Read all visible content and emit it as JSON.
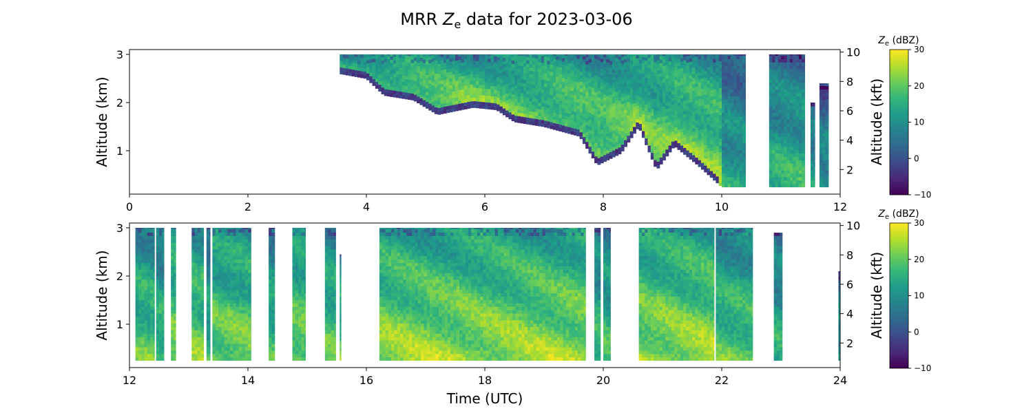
{
  "figure": {
    "title_prefix": "MRR ",
    "title_var": "Z",
    "title_sub": "e",
    "title_suffix": " data for 2023-03-06"
  },
  "colormap": {
    "name": "viridis",
    "stops": [
      "#440154",
      "#482878",
      "#3e4989",
      "#31688e",
      "#26828e",
      "#1f9e89",
      "#35b779",
      "#6ece58",
      "#b5de2b",
      "#fde725"
    ]
  },
  "chart_data": [
    {
      "type": "heatmap",
      "panel": "top",
      "xlabel": "",
      "ylabel_left": "Altitude (km)",
      "ylabel_right": "Altitude (kft)",
      "xlim": [
        0,
        12
      ],
      "ylim": [
        0.1,
        3.1
      ],
      "xticks": [
        "0",
        "2",
        "4",
        "6",
        "8",
        "10",
        "12"
      ],
      "yticks_left": [
        "1",
        "2",
        "3"
      ],
      "yticks_right": [
        "2",
        "4",
        "6",
        "8",
        "10"
      ],
      "colorbar": {
        "label_var": "Z",
        "label_sub": "e",
        "label_unit": " (dBZ)",
        "range": [
          -10,
          30
        ],
        "ticks": [
          "−10",
          "0",
          "10",
          "20",
          "30"
        ]
      },
      "echo_segments": [
        {
          "x": [
            3.55,
            10.0
          ],
          "top": 3.0,
          "base_profile": [
            [
              3.55,
              2.6
            ],
            [
              4.0,
              2.5
            ],
            [
              4.3,
              2.15
            ],
            [
              4.8,
              2.05
            ],
            [
              5.2,
              1.75
            ],
            [
              5.8,
              1.9
            ],
            [
              6.2,
              1.85
            ],
            [
              6.5,
              1.6
            ],
            [
              7.0,
              1.5
            ],
            [
              7.6,
              1.3
            ],
            [
              7.9,
              0.7
            ],
            [
              8.3,
              0.95
            ],
            [
              8.6,
              1.5
            ],
            [
              8.9,
              0.6
            ],
            [
              9.2,
              1.1
            ],
            [
              9.6,
              0.7
            ],
            [
              10.0,
              0.25
            ]
          ],
          "peak_dbz": 22
        },
        {
          "x": [
            10.0,
            10.4
          ],
          "top": 3.0,
          "base_profile": [
            [
              10.0,
              0.25
            ],
            [
              10.4,
              0.25
            ]
          ],
          "peak_dbz": 14
        },
        {
          "x": [
            10.8,
            11.4
          ],
          "top": 3.0,
          "base_profile": [
            [
              10.8,
              0.25
            ],
            [
              11.4,
              0.25
            ]
          ],
          "peak_dbz": 16
        },
        {
          "x": [
            11.5,
            11.57
          ],
          "top": 2.0,
          "base_profile": [
            [
              11.5,
              0.25
            ],
            [
              11.57,
              0.25
            ]
          ],
          "peak_dbz": 14
        },
        {
          "x": [
            11.65,
            11.8
          ],
          "top": 2.4,
          "base_profile": [
            [
              11.65,
              0.25
            ],
            [
              11.8,
              0.25
            ]
          ],
          "peak_dbz": 12
        }
      ]
    },
    {
      "type": "heatmap",
      "panel": "bottom",
      "xlabel": "Time (UTC)",
      "ylabel_left": "Altitude (km)",
      "ylabel_right": "Altitude (kft)",
      "xlim": [
        12,
        24
      ],
      "ylim": [
        0.1,
        3.1
      ],
      "xticks": [
        "12",
        "14",
        "16",
        "18",
        "20",
        "22",
        "24"
      ],
      "yticks_left": [
        "1",
        "2",
        "3"
      ],
      "yticks_right": [
        "2",
        "4",
        "6",
        "8",
        "10"
      ],
      "colorbar": {
        "label_var": "Z",
        "label_sub": "e",
        "label_unit": " (dBZ)",
        "range": [
          -10,
          30
        ],
        "ticks": [
          "−10",
          "0",
          "10",
          "20",
          "30"
        ]
      },
      "echo_segments": [
        {
          "x": [
            12.1,
            12.42
          ],
          "top": 3.0,
          "base_profile": [
            [
              12.1,
              0.25
            ],
            [
              12.42,
              0.25
            ]
          ],
          "peak_dbz": 20
        },
        {
          "x": [
            12.45,
            12.58
          ],
          "top": 3.0,
          "base_profile": [
            [
              12.45,
              0.25
            ],
            [
              12.58,
              0.25
            ]
          ],
          "peak_dbz": 18
        },
        {
          "x": [
            12.7,
            12.78
          ],
          "top": 3.0,
          "base_profile": [
            [
              12.7,
              0.25
            ],
            [
              12.78,
              0.25
            ]
          ],
          "peak_dbz": 22
        },
        {
          "x": [
            13.05,
            13.25
          ],
          "top": 3.0,
          "base_profile": [
            [
              13.05,
              0.25
            ],
            [
              13.25,
              0.25
            ]
          ],
          "peak_dbz": 22
        },
        {
          "x": [
            13.3,
            13.36
          ],
          "top": 3.0,
          "base_profile": [
            [
              13.3,
              0.25
            ],
            [
              13.36,
              0.25
            ]
          ],
          "peak_dbz": 16
        },
        {
          "x": [
            13.4,
            14.05
          ],
          "top": 3.0,
          "base_profile": [
            [
              13.4,
              0.25
            ],
            [
              14.05,
              0.25
            ]
          ],
          "peak_dbz": 22
        },
        {
          "x": [
            14.35,
            14.45
          ],
          "top": 3.0,
          "base_profile": [
            [
              14.35,
              0.25
            ],
            [
              14.45,
              0.25
            ]
          ],
          "peak_dbz": 18
        },
        {
          "x": [
            14.75,
            14.97
          ],
          "top": 3.0,
          "base_profile": [
            [
              14.75,
              0.25
            ],
            [
              14.97,
              0.25
            ]
          ],
          "peak_dbz": 22
        },
        {
          "x": [
            15.3,
            15.48
          ],
          "top": 3.0,
          "base_profile": [
            [
              15.3,
              0.25
            ],
            [
              15.48,
              0.25
            ]
          ],
          "peak_dbz": 20
        },
        {
          "x": [
            15.55,
            15.57
          ],
          "top": 2.45,
          "base_profile": [
            [
              15.55,
              0.25
            ],
            [
              15.57,
              0.25
            ]
          ],
          "peak_dbz": 20
        },
        {
          "x": [
            16.22,
            19.7
          ],
          "top": 3.0,
          "base_profile": [
            [
              16.22,
              0.25
            ],
            [
              19.7,
              0.25
            ]
          ],
          "peak_dbz": 24
        },
        {
          "x": [
            19.85,
            19.95
          ],
          "top": 3.0,
          "base_profile": [
            [
              19.85,
              0.25
            ],
            [
              19.95,
              0.25
            ]
          ],
          "peak_dbz": 18
        },
        {
          "x": [
            20.0,
            20.12
          ],
          "top": 3.0,
          "base_profile": [
            [
              20.0,
              0.25
            ],
            [
              20.12,
              0.25
            ]
          ],
          "peak_dbz": 18
        },
        {
          "x": [
            20.6,
            21.87
          ],
          "top": 3.0,
          "base_profile": [
            [
              20.6,
              0.25
            ],
            [
              21.87,
              0.25
            ]
          ],
          "peak_dbz": 24
        },
        {
          "x": [
            21.9,
            22.52
          ],
          "top": 3.0,
          "base_profile": [
            [
              21.9,
              0.25
            ],
            [
              22.52,
              0.25
            ]
          ],
          "peak_dbz": 20
        },
        {
          "x": [
            22.88,
            23.02
          ],
          "top": 2.9,
          "base_profile": [
            [
              22.88,
              0.25
            ],
            [
              23.02,
              0.25
            ]
          ],
          "peak_dbz": 16
        },
        {
          "x": [
            23.97,
            24.0
          ],
          "top": 2.1,
          "base_profile": [
            [
              23.97,
              0.25
            ],
            [
              24.0,
              0.25
            ]
          ],
          "peak_dbz": 14
        }
      ]
    }
  ]
}
